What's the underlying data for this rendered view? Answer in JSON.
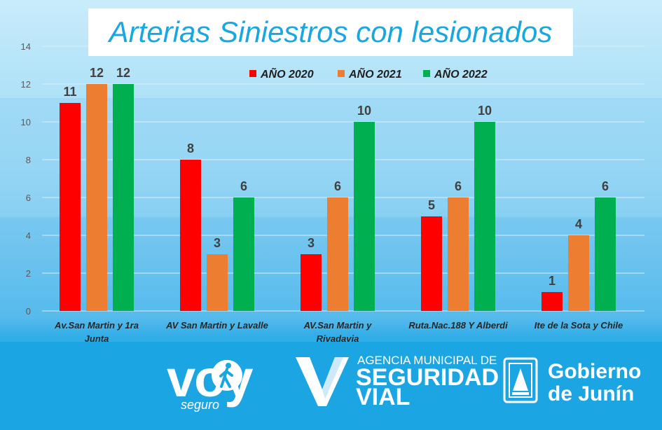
{
  "chart_data": {
    "type": "bar",
    "title": "Arterias Siniestros con lesionados",
    "categories": [
      [
        "Av.San Martin y 1ra",
        "Junta"
      ],
      [
        "AV San Martin y Lavalle"
      ],
      [
        "AV.San Martin y",
        "Rivadavia"
      ],
      [
        "Ruta.Nac.188 Y Alberdi"
      ],
      [
        "Ite de la Sota y Chile"
      ]
    ],
    "series": [
      {
        "name": "AÑO 2020",
        "color": "#ff0000",
        "values": [
          11,
          8,
          3,
          5,
          1
        ]
      },
      {
        "name": "AÑO 2021",
        "color": "#ed7d31",
        "values": [
          12,
          3,
          6,
          6,
          4
        ]
      },
      {
        "name": "AÑO 2022",
        "color": "#00b050",
        "values": [
          12,
          6,
          10,
          10,
          6
        ]
      }
    ],
    "ylim": [
      0,
      14
    ],
    "yticks": [
      "0",
      "2",
      "4",
      "6",
      "8",
      "10",
      "12",
      "14"
    ],
    "grid": true,
    "legend": "top-right",
    "xlabel": "",
    "ylabel": ""
  },
  "footer": {
    "voy_logo": "voy",
    "voy_sub": "seguro",
    "agency_line1": "AGENCIA MUNICIPAL DE",
    "agency_line2": "SEGURIDAD",
    "agency_line3": "VIAL",
    "gob_line1": "Gobierno",
    "gob_line2": "de Junín"
  },
  "icons": {
    "walker": "walking-person-icon",
    "vial": "v-check-logo",
    "crest": "junin-crest-icon"
  }
}
